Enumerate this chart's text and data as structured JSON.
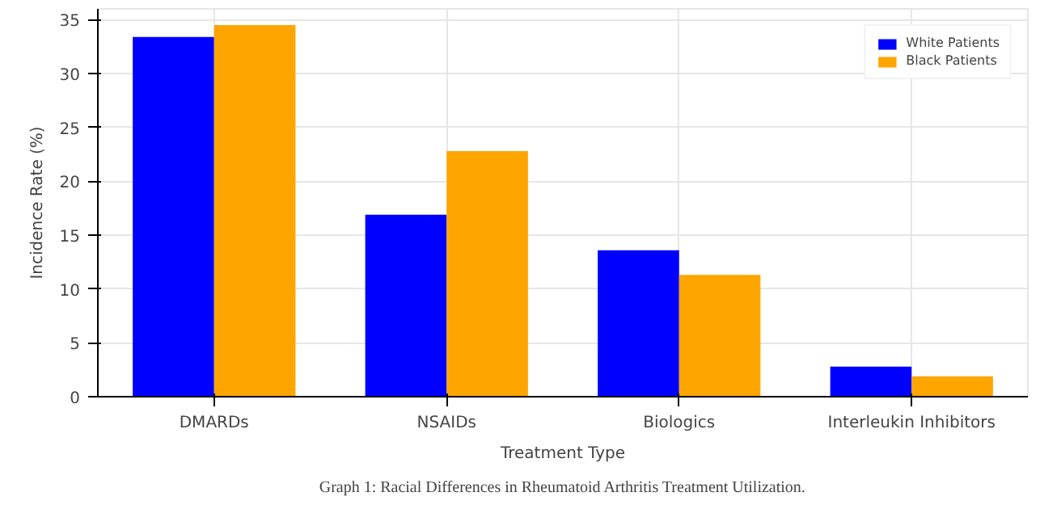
{
  "chart_data": {
    "type": "bar",
    "xlabel": "Treatment Type",
    "ylabel": "Incidence Rate (%)",
    "categories": [
      "DMARDs",
      "NSAIDs",
      "Biologics",
      "Interleukin Inhibitors"
    ],
    "series": [
      {
        "name": "White Patients",
        "color": "#0000ff",
        "values": [
          33.4,
          16.9,
          13.6,
          2.8
        ]
      },
      {
        "name": "Black Patients",
        "color": "#ffa500",
        "values": [
          34.5,
          22.8,
          11.3,
          1.9
        ]
      }
    ],
    "ylim": [
      0,
      36
    ],
    "yticks": [
      0,
      5,
      10,
      15,
      20,
      25,
      30,
      35
    ],
    "grid": true,
    "legend": "top right",
    "annotations": [
      "Graph 1: Racial Differences in Rheumatoid Arthritis Treatment Utilization."
    ]
  }
}
